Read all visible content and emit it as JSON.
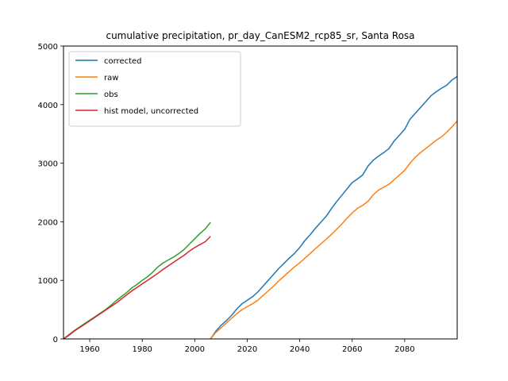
{
  "chart_data": {
    "type": "line",
    "title": "cumulative precipitation, pr_day_CanESM2_rcp85_sr, Santa Rosa",
    "xlabel": "",
    "ylabel": "",
    "xlim": [
      1950,
      2100
    ],
    "ylim": [
      0,
      5000
    ],
    "x_ticks": [
      1960,
      1980,
      2000,
      2020,
      2040,
      2060,
      2080
    ],
    "y_ticks": [
      0,
      1000,
      2000,
      3000,
      4000,
      5000
    ],
    "grid": false,
    "legend_position": "top-left",
    "series": [
      {
        "name": "corrected",
        "color": "#1f77b4",
        "x": [
          2006,
          2008,
          2010,
          2012,
          2014,
          2016,
          2018,
          2020,
          2022,
          2024,
          2026,
          2028,
          2030,
          2032,
          2034,
          2036,
          2038,
          2040,
          2042,
          2044,
          2046,
          2048,
          2050,
          2052,
          2054,
          2056,
          2058,
          2060,
          2062,
          2064,
          2066,
          2068,
          2070,
          2072,
          2074,
          2076,
          2078,
          2080,
          2082,
          2084,
          2086,
          2088,
          2090,
          2092,
          2094,
          2096,
          2098,
          2100
        ],
        "y": [
          0,
          130,
          230,
          310,
          400,
          510,
          600,
          660,
          720,
          800,
          900,
          1000,
          1100,
          1200,
          1290,
          1380,
          1460,
          1560,
          1680,
          1780,
          1890,
          1990,
          2090,
          2220,
          2340,
          2450,
          2560,
          2670,
          2730,
          2800,
          2950,
          3050,
          3120,
          3180,
          3250,
          3380,
          3480,
          3580,
          3750,
          3850,
          3950,
          4050,
          4150,
          4220,
          4280,
          4330,
          4420,
          4480
        ]
      },
      {
        "name": "raw",
        "color": "#ff7f0e",
        "x": [
          2006,
          2008,
          2010,
          2012,
          2014,
          2016,
          2018,
          2020,
          2022,
          2024,
          2026,
          2028,
          2030,
          2032,
          2034,
          2036,
          2038,
          2040,
          2042,
          2044,
          2046,
          2048,
          2050,
          2052,
          2054,
          2056,
          2058,
          2060,
          2062,
          2064,
          2066,
          2068,
          2070,
          2072,
          2074,
          2076,
          2078,
          2080,
          2082,
          2084,
          2086,
          2088,
          2090,
          2092,
          2094,
          2096,
          2098,
          2100
        ],
        "y": [
          0,
          110,
          190,
          270,
          350,
          430,
          500,
          550,
          600,
          660,
          740,
          820,
          900,
          990,
          1070,
          1150,
          1230,
          1300,
          1380,
          1460,
          1540,
          1620,
          1700,
          1780,
          1870,
          1960,
          2060,
          2150,
          2230,
          2280,
          2350,
          2460,
          2540,
          2590,
          2640,
          2720,
          2800,
          2880,
          3000,
          3100,
          3180,
          3250,
          3320,
          3390,
          3450,
          3530,
          3620,
          3720
        ]
      },
      {
        "name": "obs",
        "color": "#2ca02c",
        "x": [
          1950,
          1952,
          1954,
          1956,
          1958,
          1960,
          1962,
          1964,
          1966,
          1968,
          1970,
          1972,
          1974,
          1976,
          1978,
          1980,
          1982,
          1984,
          1986,
          1988,
          1990,
          1992,
          1994,
          1996,
          1998,
          2000,
          2002,
          2004,
          2006
        ],
        "y": [
          0,
          70,
          140,
          200,
          260,
          320,
          380,
          440,
          500,
          570,
          650,
          720,
          790,
          870,
          930,
          1000,
          1060,
          1140,
          1230,
          1300,
          1350,
          1400,
          1460,
          1530,
          1620,
          1710,
          1800,
          1880,
          1990
        ]
      },
      {
        "name": "hist model, uncorrected",
        "color": "#d62728",
        "x": [
          1950,
          1952,
          1954,
          1956,
          1958,
          1960,
          1962,
          1964,
          1966,
          1968,
          1970,
          1972,
          1974,
          1976,
          1978,
          1980,
          1982,
          1984,
          1986,
          1988,
          1990,
          1992,
          1994,
          1996,
          1998,
          2000,
          2002,
          2004,
          2006
        ],
        "y": [
          0,
          60,
          130,
          190,
          250,
          310,
          370,
          430,
          490,
          550,
          610,
          680,
          750,
          820,
          880,
          940,
          1000,
          1060,
          1120,
          1190,
          1250,
          1310,
          1370,
          1430,
          1500,
          1560,
          1610,
          1660,
          1750
        ]
      }
    ]
  }
}
